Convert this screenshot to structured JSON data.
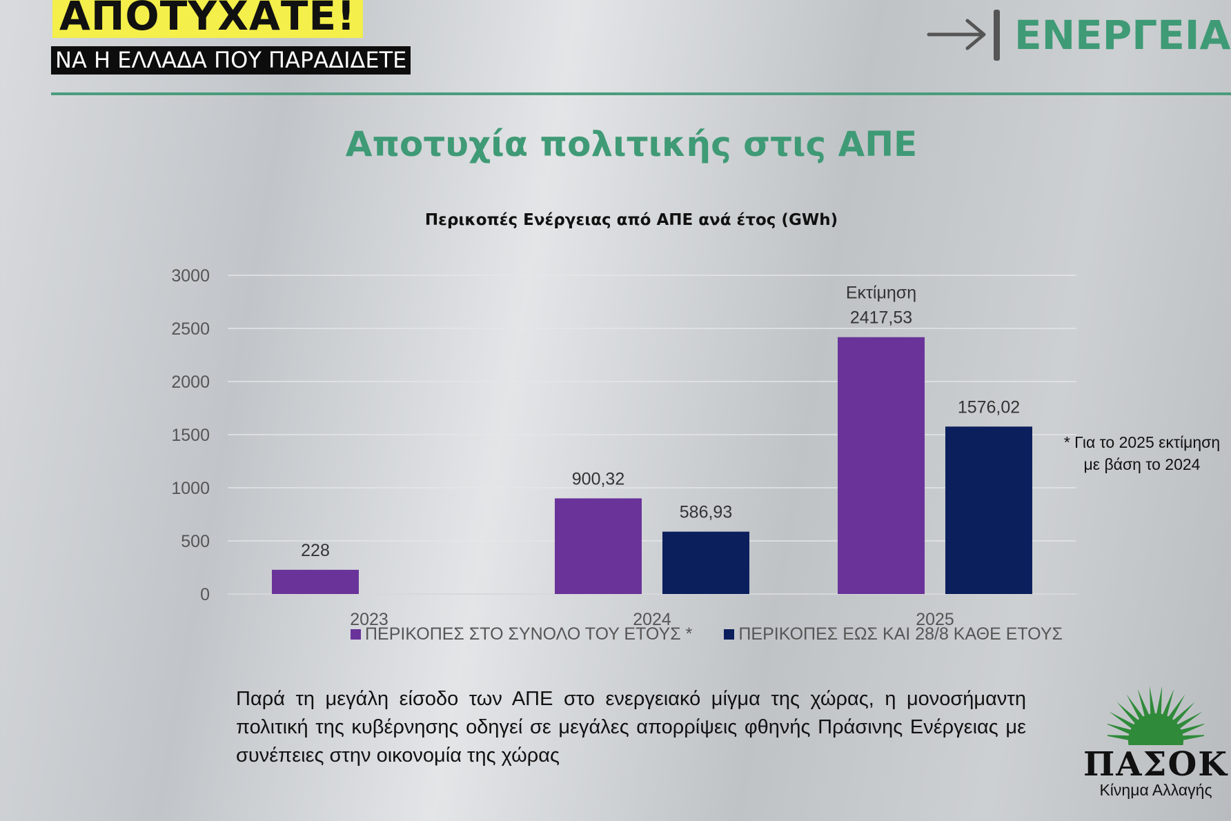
{
  "header": {
    "banner_title": "ΑΠΟΤΥΧΑΤΕ!",
    "banner_subtitle": "ΝΑ Η ΕΛΛΑΔΑ ΠΟΥ ΠΑΡΑΔΙΔΕΤΕ",
    "section": "ΕΝΕΡΓΕΙΑ",
    "accent_color": "#3f9a76",
    "banner_color": "#f4ef4a"
  },
  "main_title": "Αποτυχία πολιτικής στις ΑΠΕ",
  "chart_data": {
    "type": "bar",
    "title": "Περικοπές Ενέργειας από ΑΠΕ ανά έτος  (GWh)",
    "categories": [
      "2023",
      "2024",
      "2025"
    ],
    "y_ticks": [
      "0",
      "500",
      "1000",
      "1500",
      "2000",
      "2500",
      "3000"
    ],
    "ylim": [
      0,
      3000
    ],
    "grid": true,
    "legend_position": "bottom",
    "series": [
      {
        "name": "ΠΕΡΙΚΟΠΕΣ ΣΤΟ ΣΥΝΟΛΟ ΤΟΥ ΕΤΟΥΣ *",
        "color": "#6a3399",
        "values": [
          228,
          900.32,
          2417.53
        ],
        "labels": [
          "228",
          "900,32",
          "2417,53"
        ]
      },
      {
        "name": "ΠΕΡΙΚΟΠΕΣ ΕΩΣ ΚΑΙ 28/8 ΚΑΘΕ ΕΤΟΥΣ",
        "color": "#0b1f5c",
        "values": [
          null,
          586.93,
          1576.02
        ],
        "labels": [
          "",
          "586,93",
          "1576,02"
        ]
      }
    ],
    "annotations": [
      {
        "text": "Εκτίμηση",
        "category": "2025",
        "series": 0
      }
    ]
  },
  "note": "* Για το 2025 εκτίμηση με βάση το 2024",
  "paragraph": "Παρά τη μεγάλη είσοδο των ΑΠΕ στο ενεργειακό μίγμα της χώρας, η μονοσήμαντη πολιτική της κυβέρνησης οδηγεί σε μεγάλες απορρίψεις φθηνής Πράσινης Ενέργειας με συνέπειες στην οικονομία της χώρας",
  "logo": {
    "name": "ΠΑΣΟΚ",
    "tagline": "Κίνημα Αλλαγής",
    "icon": "green-sun-icon",
    "color": "#2f8a3a"
  }
}
